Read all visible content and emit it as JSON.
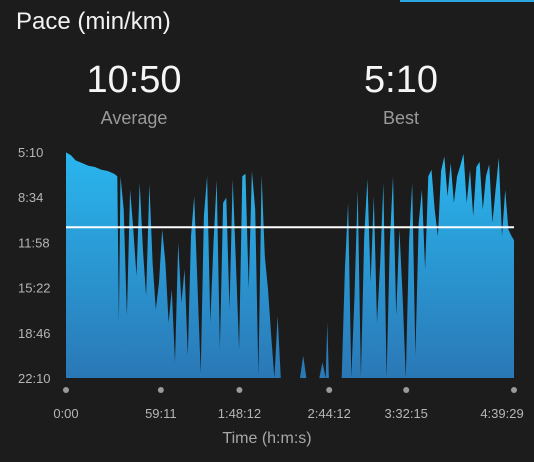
{
  "header": {
    "title": "Pace (min/km)"
  },
  "stats": {
    "average": {
      "value": "10:50",
      "label": "Average"
    },
    "best": {
      "value": "5:10",
      "label": "Best"
    }
  },
  "colors": {
    "background": "#1c1c1c",
    "area_top": "#2ab6ee",
    "area_bottom": "#2a78b6",
    "average_line": "#ffffff",
    "accent": "#2aa7e0",
    "tick_text": "#b5b5b5"
  },
  "chart_data": {
    "type": "area",
    "xlabel": "Time (h:m:s)",
    "ylabel": "",
    "y_reversed": true,
    "yticks": [
      "5:10",
      "8:34",
      "11:58",
      "15:22",
      "18:46",
      "22:10"
    ],
    "ytick_minutes": [
      5.17,
      8.57,
      11.97,
      15.37,
      18.77,
      22.17
    ],
    "xticks": [
      "0:00",
      "59:11",
      "1:48:12",
      "2:44:12",
      "3:32:15",
      "4:39:29"
    ],
    "xtick_minutes": [
      0,
      59.18,
      108.2,
      164.2,
      212.25,
      279.48
    ],
    "xlim_minutes": [
      0,
      279.48
    ],
    "ylim_minutes": [
      5.17,
      22.17
    ],
    "average_minutes": 10.83,
    "series": [
      {
        "x_minutes": [
          0,
          3,
          6,
          10,
          14,
          18,
          22,
          26,
          30,
          32,
          33,
          34,
          36,
          38,
          40,
          42,
          44,
          46,
          48,
          50,
          52,
          54,
          56,
          58,
          60,
          62,
          64,
          66,
          68,
          70,
          72,
          74,
          76,
          78,
          80,
          82,
          84,
          86,
          88,
          90,
          92,
          94,
          96,
          98,
          100,
          102,
          104,
          106,
          108,
          110,
          112,
          114,
          116,
          118,
          120,
          122,
          124,
          126,
          128,
          130,
          132,
          134,
          138,
          142,
          146,
          148,
          150,
          154,
          158,
          160,
          162,
          163,
          164,
          166,
          168,
          170,
          172,
          174,
          176,
          178,
          180,
          182,
          184,
          186,
          188,
          190,
          192,
          194,
          196,
          198,
          200,
          202,
          204,
          206,
          208,
          210,
          212,
          214,
          216,
          218,
          220,
          222,
          224,
          226,
          228,
          230,
          232,
          234,
          236,
          238,
          240,
          242,
          244,
          246,
          248,
          250,
          252,
          254,
          256,
          258,
          260,
          262,
          264,
          266,
          268,
          270,
          272,
          274,
          276,
          278,
          279.48
        ],
        "pace_minutes": [
          5.2,
          5.4,
          5.8,
          6.0,
          6.2,
          6.3,
          6.5,
          6.6,
          6.8,
          7.0,
          18.0,
          7.0,
          9.5,
          17.5,
          8.0,
          11.0,
          14.5,
          7.5,
          12.5,
          16.0,
          7.6,
          13.5,
          17.0,
          15.0,
          11.0,
          13.5,
          18.0,
          15.5,
          21.0,
          12.0,
          16.5,
          14.0,
          20.5,
          11.5,
          8.5,
          15.0,
          21.8,
          10.0,
          7.0,
          18.0,
          12.0,
          7.3,
          20.0,
          9.0,
          8.6,
          17.0,
          7.2,
          13.5,
          20.0,
          7.0,
          6.8,
          15.5,
          6.6,
          9.5,
          22.0,
          6.9,
          13.0,
          15.5,
          19.0,
          22.17,
          17.5,
          22.17,
          22.17,
          22.17,
          22.17,
          20.5,
          22.17,
          22.17,
          22.17,
          21.0,
          22.17,
          18.0,
          22.17,
          22.17,
          22.17,
          22.17,
          22.17,
          14.0,
          9.0,
          22.17,
          16.0,
          8.0,
          22.17,
          11.5,
          7.2,
          15.0,
          8.5,
          18.0,
          13.5,
          7.5,
          22.17,
          12.0,
          7.0,
          17.5,
          11.0,
          16.0,
          22.17,
          12.0,
          7.5,
          20.5,
          10.5,
          8.0,
          14.0,
          7.0,
          6.5,
          9.5,
          11.5,
          6.6,
          5.5,
          8.5,
          6.0,
          9.0,
          7.0,
          6.2,
          5.3,
          9.0,
          6.5,
          10.0,
          6.3,
          5.9,
          9.5,
          7.0,
          6.1,
          10.5,
          8.0,
          5.6,
          11.5,
          8.0,
          11.0,
          11.5,
          11.8
        ]
      }
    ]
  }
}
